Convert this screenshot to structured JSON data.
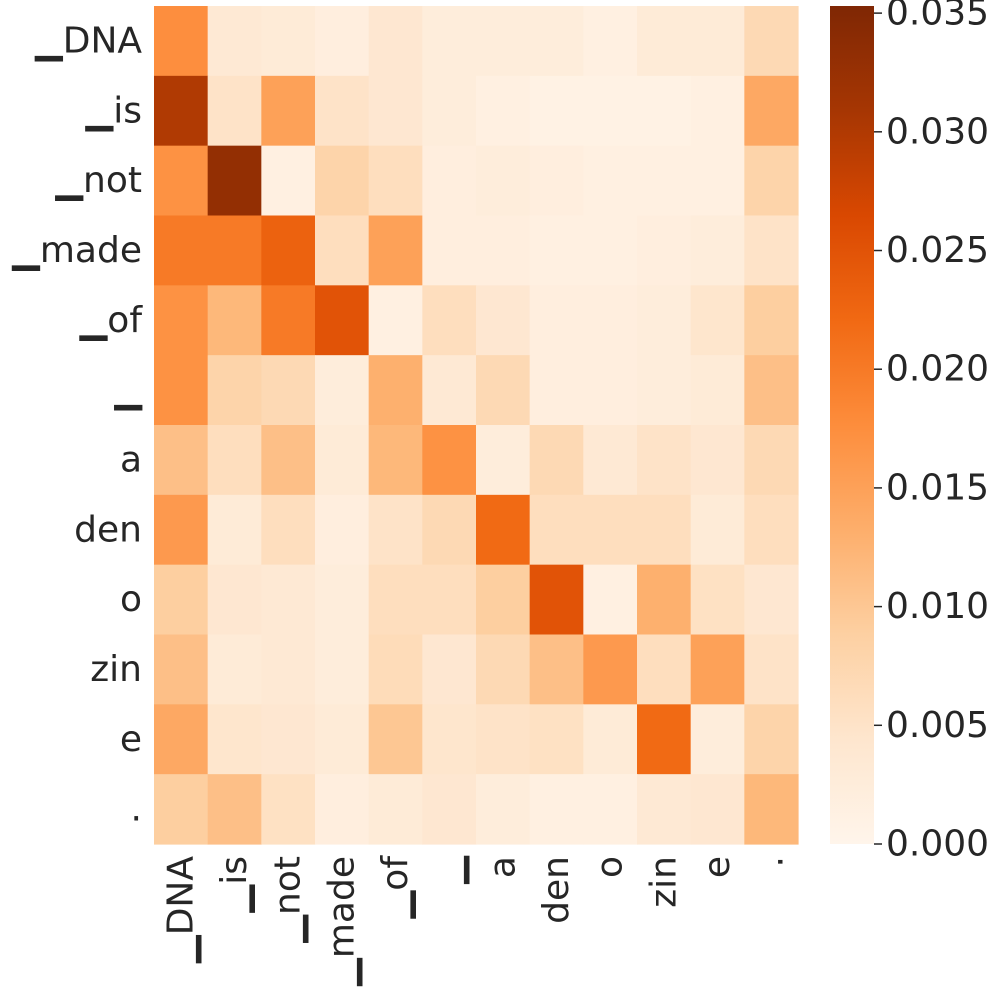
{
  "chart_data": {
    "type": "heatmap",
    "title": "",
    "xlabel": "",
    "ylabel": "",
    "x_labels": [
      "▁DNA",
      "▁is",
      "▁not",
      "▁made",
      "▁of",
      "▁",
      "a",
      "den",
      "o",
      "zin",
      "e",
      "."
    ],
    "y_labels": [
      "▁DNA",
      "▁is",
      "▁not",
      "▁made",
      "▁of",
      "▁",
      "a",
      "den",
      "o",
      "zin",
      "e",
      "."
    ],
    "values": [
      [
        0.0175,
        0.0035,
        0.003,
        0.002,
        0.004,
        0.0025,
        0.0025,
        0.0025,
        0.0015,
        0.003,
        0.003,
        0.007
      ],
      [
        0.03,
        0.005,
        0.015,
        0.005,
        0.004,
        0.0025,
        0.0015,
        0.001,
        0.001,
        0.001,
        0.0015,
        0.014
      ],
      [
        0.017,
        0.033,
        0.0015,
        0.008,
        0.006,
        0.002,
        0.0025,
        0.002,
        0.0015,
        0.0015,
        0.0015,
        0.008
      ],
      [
        0.02,
        0.02,
        0.023,
        0.006,
        0.015,
        0.002,
        0.002,
        0.0015,
        0.0015,
        0.002,
        0.0025,
        0.005
      ],
      [
        0.017,
        0.012,
        0.02,
        0.025,
        0.0015,
        0.006,
        0.004,
        0.002,
        0.002,
        0.0025,
        0.0045,
        0.009
      ],
      [
        0.017,
        0.008,
        0.007,
        0.0025,
        0.013,
        0.0035,
        0.007,
        0.002,
        0.002,
        0.0025,
        0.003,
        0.011
      ],
      [
        0.011,
        0.006,
        0.011,
        0.003,
        0.012,
        0.017,
        0.0025,
        0.007,
        0.0035,
        0.005,
        0.004,
        0.007
      ],
      [
        0.016,
        0.003,
        0.006,
        0.002,
        0.005,
        0.007,
        0.022,
        0.006,
        0.006,
        0.006,
        0.003,
        0.006
      ],
      [
        0.009,
        0.004,
        0.0035,
        0.0025,
        0.006,
        0.006,
        0.009,
        0.025,
        0.0015,
        0.013,
        0.0055,
        0.004
      ],
      [
        0.011,
        0.003,
        0.0035,
        0.0025,
        0.0065,
        0.004,
        0.007,
        0.011,
        0.016,
        0.006,
        0.015,
        0.005
      ],
      [
        0.014,
        0.0045,
        0.004,
        0.003,
        0.01,
        0.0045,
        0.005,
        0.0055,
        0.003,
        0.022,
        0.0025,
        0.008
      ],
      [
        0.009,
        0.011,
        0.0055,
        0.002,
        0.003,
        0.004,
        0.0025,
        0.0015,
        0.0015,
        0.0035,
        0.004,
        0.012
      ]
    ],
    "vmin": 0.0,
    "vmax": 0.0353,
    "colormap": "Oranges",
    "colorbar_ticks": [
      "0.000",
      "0.005",
      "0.010",
      "0.015",
      "0.020",
      "0.025",
      "0.030",
      "0.035"
    ],
    "colorbar_tick_values": [
      0.0,
      0.005,
      0.01,
      0.015,
      0.02,
      0.025,
      0.03,
      0.035
    ],
    "grid": false,
    "colorbar_position": "right"
  }
}
